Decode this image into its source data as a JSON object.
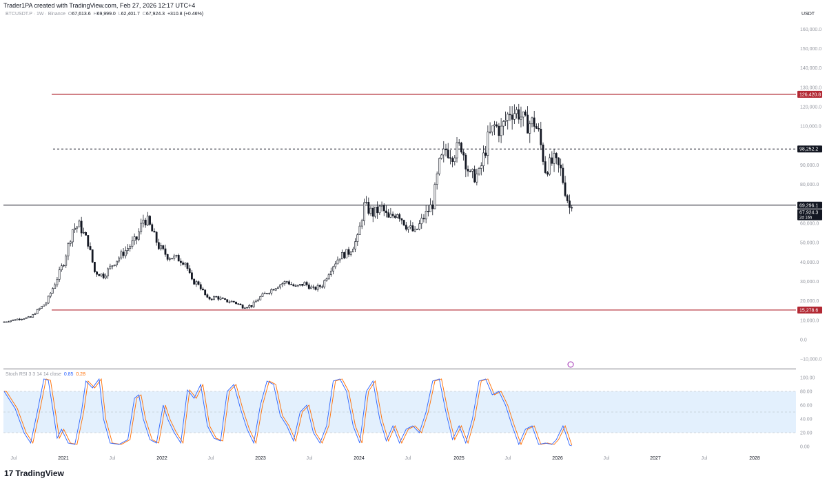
{
  "header": {
    "text": "Trader1PA created with TradingView.com, Feb 27, 2026 12:17 UTC+4"
  },
  "symbol": {
    "name": "BTCUSDT.P · 1W · Binance",
    "o_label": "O",
    "o": "67,613.6",
    "h_label": "H",
    "h": "69,999.0",
    "l_label": "L",
    "l": "62,401.7",
    "c_label": "C",
    "c": "67,924.3",
    "change": "+310.8 (+0.46%)"
  },
  "currency": "USDT",
  "logo": {
    "mark": "17",
    "text": "TradingView"
  },
  "colors": {
    "candle": "#131722",
    "resistance": "#b22833",
    "k_line": "#2962ff",
    "d_line": "#ff6d00",
    "band_fill": "#e3f0fd",
    "grid_text": "#9598a1"
  },
  "chart_data": [
    {
      "type": "candlestick",
      "title": "BTCUSDT.P · 1W · Binance",
      "x_type": "weeks",
      "x_tick_labels": [
        "Jul",
        "2021",
        "Jul",
        "2022",
        "Jul",
        "2023",
        "Jul",
        "2024",
        "Jul",
        "2025",
        "Jul",
        "2026",
        "Jul",
        "2027",
        "Jul",
        "2028"
      ],
      "y_tick_labels": [
        "160,000.0",
        "150,000.0",
        "140,000.0",
        "130,000.0",
        "120,000.0",
        "110,000.0",
        "90,000.0",
        "80,000.0",
        "60,000.0",
        "50,000.0",
        "40,000.0",
        "30,000.0",
        "20,000.0",
        "10,000.0",
        "0.0",
        "−10,000.0"
      ],
      "ylim": [
        -12000,
        165000
      ],
      "series": [
        {
          "name": "BTCUSDT.P weekly close (approx.)",
          "anchors": [
            [
              0,
              9200
            ],
            [
              7,
              10800
            ],
            [
              12,
              11500
            ],
            [
              15,
              15000
            ],
            [
              19,
              19000
            ],
            [
              23,
              29000
            ],
            [
              27,
              40000
            ],
            [
              31,
              57000
            ],
            [
              34,
              59000
            ],
            [
              38,
              50000
            ],
            [
              41,
              35000
            ],
            [
              45,
              33000
            ],
            [
              50,
              40000
            ],
            [
              55,
              46000
            ],
            [
              60,
              52000
            ],
            [
              63,
              62000
            ],
            [
              65,
              61000
            ],
            [
              70,
              48000
            ],
            [
              74,
              43000
            ],
            [
              78,
              42000
            ],
            [
              82,
              40000
            ],
            [
              85,
              30000
            ],
            [
              88,
              29000
            ],
            [
              92,
              21000
            ],
            [
              96,
              22000
            ],
            [
              100,
              20000
            ],
            [
              104,
              19500
            ],
            [
              108,
              17000
            ],
            [
              112,
              17500
            ],
            [
              116,
              22000
            ],
            [
              120,
              25000
            ],
            [
              124,
              28000
            ],
            [
              128,
              30000
            ],
            [
              132,
              27000
            ],
            [
              136,
              29000
            ],
            [
              140,
              26000
            ],
            [
              144,
              28000
            ],
            [
              148,
              37000
            ],
            [
              152,
              43000
            ],
            [
              156,
              45000
            ],
            [
              160,
              52000
            ],
            [
              163,
              69000
            ],
            [
              167,
              65000
            ],
            [
              171,
              68000
            ],
            [
              174,
              62000
            ],
            [
              178,
              66000
            ],
            [
              182,
              59000
            ],
            [
              186,
              55000
            ],
            [
              190,
              63000
            ],
            [
              194,
              70000
            ],
            [
              197,
              90000
            ],
            [
              200,
              98000
            ],
            [
              203,
              96000
            ],
            [
              207,
              100000
            ],
            [
              211,
              84000
            ],
            [
              215,
              85000
            ],
            [
              219,
              103000
            ],
            [
              222,
              110000
            ],
            [
              225,
              108000
            ],
            [
              229,
              118000
            ],
            [
              233,
              117000
            ],
            [
              236,
              111000
            ],
            [
              240,
              112000
            ],
            [
              242,
              106000
            ],
            [
              245,
              88000
            ],
            [
              249,
              92000
            ],
            [
              252,
              87000
            ],
            [
              254,
              77000
            ],
            [
              256,
              68000
            ],
            [
              257,
              67924
            ]
          ]
        }
      ],
      "annotations": [
        {
          "label": "126,420.8",
          "value": 126420.8,
          "style": "solid",
          "color": "#b22833"
        },
        {
          "label": "98,252.2",
          "value": 98252.2,
          "style": "dashed",
          "color": "#131722"
        },
        {
          "label": "69,296.1",
          "value": 69296.1,
          "style": "solid",
          "color": "#131722"
        },
        {
          "label": "15,278.6",
          "value": 15278.6,
          "style": "solid",
          "color": "#b22833"
        }
      ],
      "last_price": {
        "value": 67924.3,
        "label": "67,924.3",
        "countdown": "2d 16h"
      }
    },
    {
      "type": "line",
      "title": "Stoch RSI 3 3 14 14 close",
      "legend_values": {
        "k": "0.85",
        "d": "0.28"
      },
      "y_tick_labels": [
        "100.00",
        "80.00",
        "60.00",
        "40.00",
        "20.00",
        "0.00"
      ],
      "ylim": [
        0,
        100
      ],
      "band": [
        20,
        80
      ],
      "series": [
        {
          "name": "K",
          "color": "#2962ff",
          "anchors": [
            [
              0,
              80
            ],
            [
              5,
              55
            ],
            [
              9,
              20
            ],
            [
              12,
              5
            ],
            [
              15,
              50
            ],
            [
              18,
              98
            ],
            [
              20,
              96
            ],
            [
              22,
              55
            ],
            [
              24,
              12
            ],
            [
              26,
              25
            ],
            [
              29,
              5
            ],
            [
              32,
              3
            ],
            [
              35,
              50
            ],
            [
              37,
              95
            ],
            [
              40,
              85
            ],
            [
              43,
              98
            ],
            [
              45,
              40
            ],
            [
              48,
              5
            ],
            [
              52,
              3
            ],
            [
              56,
              10
            ],
            [
              59,
              70
            ],
            [
              61,
              75
            ],
            [
              63,
              40
            ],
            [
              66,
              10
            ],
            [
              69,
              5
            ],
            [
              72,
              60
            ],
            [
              74,
              40
            ],
            [
              77,
              20
            ],
            [
              80,
              5
            ],
            [
              83,
              82
            ],
            [
              86,
              70
            ],
            [
              89,
              90
            ],
            [
              92,
              30
            ],
            [
              95,
              12
            ],
            [
              98,
              8
            ],
            [
              101,
              80
            ],
            [
              104,
              90
            ],
            [
              107,
              55
            ],
            [
              110,
              25
            ],
            [
              113,
              5
            ],
            [
              116,
              60
            ],
            [
              119,
              95
            ],
            [
              122,
              90
            ],
            [
              125,
              45
            ],
            [
              128,
              30
            ],
            [
              131,
              8
            ],
            [
              134,
              50
            ],
            [
              137,
              60
            ],
            [
              140,
              20
            ],
            [
              143,
              5
            ],
            [
              146,
              30
            ],
            [
              149,
              95
            ],
            [
              152,
              98
            ],
            [
              155,
              80
            ],
            [
              158,
              30
            ],
            [
              161,
              5
            ],
            [
              164,
              80
            ],
            [
              167,
              95
            ],
            [
              170,
              40
            ],
            [
              173,
              8
            ],
            [
              176,
              30
            ],
            [
              179,
              5
            ],
            [
              182,
              25
            ],
            [
              185,
              30
            ],
            [
              188,
              20
            ],
            [
              191,
              50
            ],
            [
              194,
              95
            ],
            [
              197,
              98
            ],
            [
              200,
              50
            ],
            [
              203,
              10
            ],
            [
              206,
              30
            ],
            [
              209,
              5
            ],
            [
              212,
              40
            ],
            [
              215,
              95
            ],
            [
              218,
              98
            ],
            [
              221,
              75
            ],
            [
              224,
              80
            ],
            [
              227,
              60
            ],
            [
              230,
              30
            ],
            [
              233,
              3
            ],
            [
              236,
              25
            ],
            [
              239,
              30
            ],
            [
              242,
              3
            ],
            [
              245,
              5
            ],
            [
              248,
              3
            ],
            [
              250,
              10
            ],
            [
              253,
              30
            ],
            [
              256,
              2
            ],
            [
              257,
              1
            ]
          ]
        },
        {
          "name": "D",
          "color": "#ff6d00",
          "lag": 1
        }
      ]
    }
  ]
}
